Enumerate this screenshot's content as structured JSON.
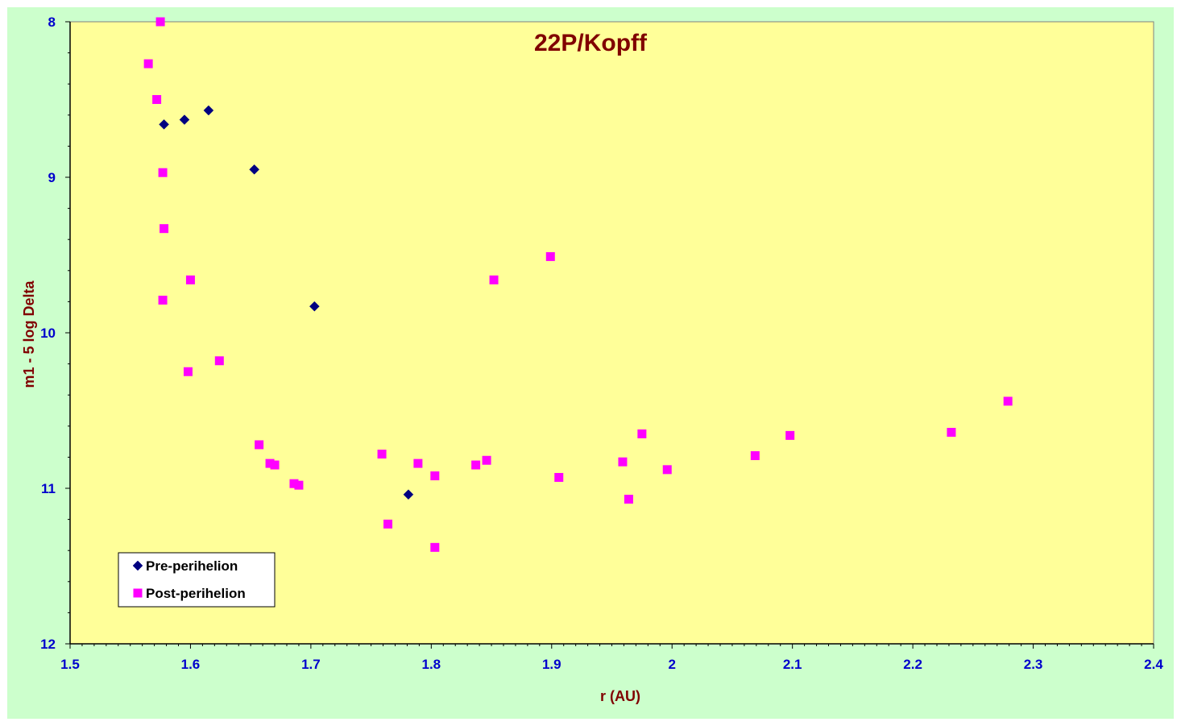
{
  "chart_data": {
    "type": "scatter",
    "title": "22P/Kopff",
    "xlabel": "r (AU)",
    "ylabel": "m1 - 5 log Delta",
    "xlim": [
      1.5,
      2.4
    ],
    "ylim": [
      8,
      12
    ],
    "y_inverted": true,
    "x_ticks": [
      "1.5",
      "1.6",
      "1.7",
      "1.8",
      "1.9",
      "2",
      "2.1",
      "2.2",
      "2.3",
      "2.4"
    ],
    "y_ticks": [
      "8",
      "9",
      "10",
      "11",
      "12"
    ],
    "grid": false,
    "legend_position": "bottom-left",
    "colors": {
      "plot_bg": "#ffff99",
      "outer_bg": "#ccffcc",
      "pre": "#000080",
      "post": "#ff00ff"
    },
    "series": [
      {
        "name": "Pre-perihelion",
        "marker": "diamond",
        "points": [
          [
            1.578,
            8.66
          ],
          [
            1.595,
            8.63
          ],
          [
            1.615,
            8.57
          ],
          [
            1.653,
            8.95
          ],
          [
            1.703,
            9.83
          ],
          [
            1.781,
            11.04
          ]
        ]
      },
      {
        "name": "Post-perihelion",
        "marker": "square",
        "points": [
          [
            1.575,
            8.0
          ],
          [
            1.565,
            8.27
          ],
          [
            1.572,
            8.5
          ],
          [
            1.577,
            8.97
          ],
          [
            1.578,
            9.33
          ],
          [
            1.6,
            9.66
          ],
          [
            1.577,
            9.79
          ],
          [
            1.598,
            10.25
          ],
          [
            1.624,
            10.18
          ],
          [
            1.657,
            10.72
          ],
          [
            1.666,
            10.84
          ],
          [
            1.67,
            10.85
          ],
          [
            1.686,
            10.97
          ],
          [
            1.69,
            10.98
          ],
          [
            1.759,
            10.78
          ],
          [
            1.764,
            11.23
          ],
          [
            1.789,
            10.84
          ],
          [
            1.803,
            10.92
          ],
          [
            1.803,
            11.38
          ],
          [
            1.837,
            10.85
          ],
          [
            1.846,
            10.82
          ],
          [
            1.852,
            9.66
          ],
          [
            1.899,
            9.51
          ],
          [
            1.906,
            10.93
          ],
          [
            1.959,
            10.83
          ],
          [
            1.964,
            11.07
          ],
          [
            1.975,
            10.65
          ],
          [
            1.996,
            10.88
          ],
          [
            2.069,
            10.79
          ],
          [
            2.098,
            10.66
          ],
          [
            2.232,
            10.64
          ],
          [
            2.279,
            10.44
          ]
        ]
      }
    ]
  }
}
